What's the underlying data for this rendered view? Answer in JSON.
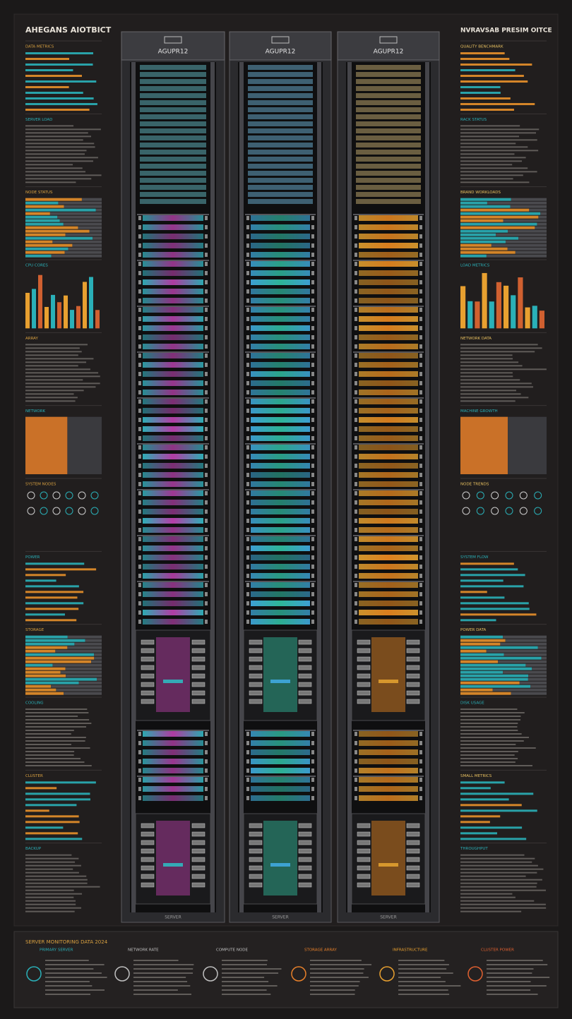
{
  "left_panel": {
    "title": "AHEGANS AIOTBICT",
    "sections": [
      "DATA METRICS",
      "SERVER LOAD",
      "NODE STATUS",
      "CPU CORES",
      "ARRAY",
      "NETWORK",
      "SYSTEM NODES",
      "POWER",
      "STORAGE",
      "COOLING",
      "CLUSTER",
      "BACKUP"
    ]
  },
  "right_panel": {
    "title": "NVRAVSAB PRESIM OITCE",
    "sections": [
      "QUALITY BENCHMARK",
      "RACK STATUS",
      "BRAND WORKLOADS",
      "LOAD METRICS",
      "NETWORK DATA",
      "MACHINE GROWTH",
      "NODE TRENDS",
      "SYSTEM FLOW",
      "POWER DATA",
      "DISK USAGE",
      "SMALL METRICS",
      "THROUGHPUT"
    ]
  },
  "racks": [
    {
      "label": "AGUPR12",
      "footer": "SERVER",
      "colors": [
        "#c040b0",
        "#2fb8c0"
      ]
    },
    {
      "label": "AGUPR12",
      "footer": "SERVER",
      "colors": [
        "#30c0a0",
        "#40a8e0"
      ]
    },
    {
      "label": "AGUPR12",
      "footer": "SERVER",
      "colors": [
        "#f08a20",
        "#e0a030"
      ]
    }
  ],
  "bottom_panel": {
    "title": "SERVER MONITORING DATA 2024",
    "columns": [
      "PRIMARY SERVER",
      "NETWORK RATE",
      "COMPUTE NODE",
      "STORAGE ARRAY",
      "INFRASTRUCTURE",
      "CLUSTER POWER"
    ]
  }
}
